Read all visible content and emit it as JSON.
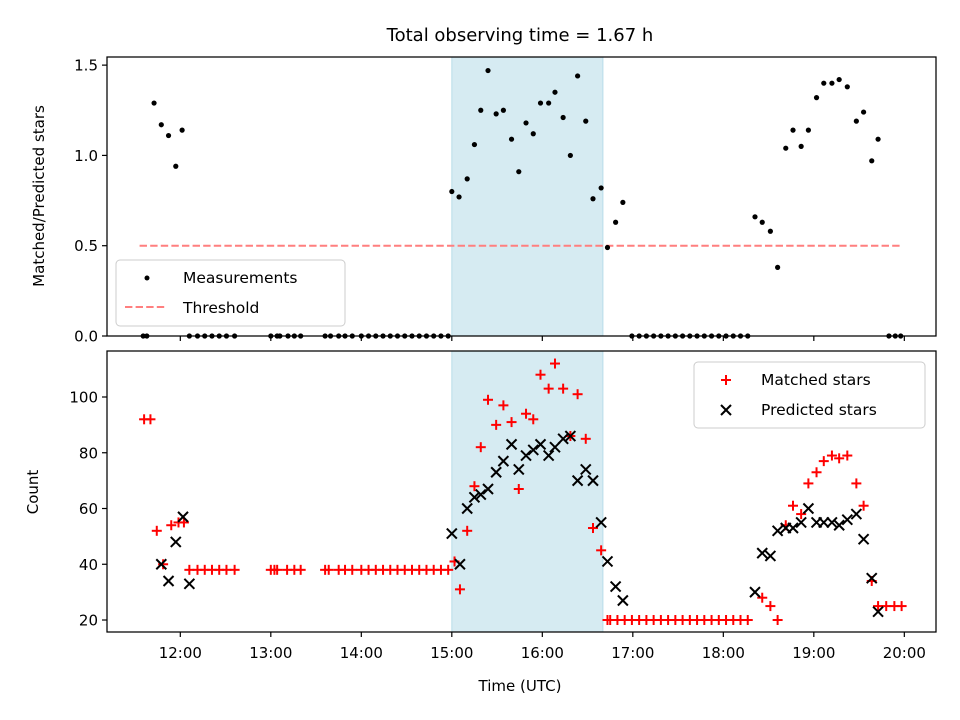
{
  "chart_data": [
    {
      "panel": "top",
      "type": "scatter",
      "title": "Total observing time = 1.67 h",
      "xlabel": "",
      "ylabel": "Matched/Predicted stars",
      "xlim": [
        11.19,
        20.35
      ],
      "ylim": [
        0.0,
        1.545
      ],
      "yticks": [
        0.0,
        0.5,
        1.0,
        1.5
      ],
      "ytick_labels": [
        "0.0",
        "0.5",
        "1.0",
        "1.5"
      ],
      "xticks": [
        12,
        13,
        14,
        15,
        16,
        17,
        18,
        19,
        20
      ],
      "grid": false,
      "legend": {
        "placement": "lower-left",
        "entries": [
          "Measurements",
          "Threshold"
        ]
      },
      "shaded_span": {
        "x_start": 15.0,
        "x_end": 16.67,
        "color": "#add8e6"
      },
      "threshold": {
        "name": "Threshold",
        "value": 0.5,
        "x_start": 11.55,
        "x_end": 19.95,
        "color": "#ff7f7f",
        "style": "dashed"
      },
      "series": [
        {
          "name": "Measurements",
          "marker": "dot",
          "color": "#000000",
          "x": [
            11.59,
            11.63,
            11.71,
            11.79,
            11.87,
            11.95,
            12.02,
            12.1,
            12.19,
            12.27,
            12.35,
            12.43,
            12.51,
            12.6,
            13.0,
            13.07,
            13.1,
            13.19,
            13.26,
            13.33,
            13.6,
            13.66,
            13.75,
            13.82,
            13.9,
            14.0,
            14.08,
            14.16,
            14.24,
            14.32,
            14.4,
            14.48,
            14.56,
            14.64,
            14.72,
            14.8,
            14.88,
            14.96,
            15.0,
            15.08,
            15.17,
            15.25,
            15.32,
            15.4,
            15.49,
            15.57,
            15.66,
            15.74,
            15.82,
            15.9,
            15.98,
            16.07,
            16.14,
            16.23,
            16.31,
            16.39,
            16.48,
            16.56,
            16.65,
            16.72,
            16.81,
            16.89,
            16.99,
            17.07,
            17.15,
            17.23,
            17.31,
            17.39,
            17.47,
            17.55,
            17.63,
            17.71,
            17.79,
            17.87,
            17.95,
            18.03,
            18.11,
            18.19,
            18.27,
            18.35,
            18.43,
            18.52,
            18.6,
            18.69,
            18.77,
            18.86,
            18.94,
            19.03,
            19.11,
            19.2,
            19.28,
            19.37,
            19.47,
            19.55,
            19.64,
            19.71,
            19.83,
            19.9,
            19.96
          ],
          "y": [
            0,
            0,
            1.29,
            1.17,
            1.11,
            0.94,
            1.14,
            0,
            0,
            0,
            0,
            0,
            0,
            0,
            0,
            0,
            0,
            0,
            0,
            0,
            0,
            0,
            0,
            0,
            0,
            0,
            0,
            0,
            0,
            0,
            0,
            0,
            0,
            0,
            0,
            0,
            0,
            0,
            0.8,
            0.77,
            0.87,
            1.06,
            1.25,
            1.47,
            1.23,
            1.25,
            1.09,
            0.91,
            1.18,
            1.12,
            1.29,
            1.29,
            1.35,
            1.21,
            1.0,
            1.44,
            1.19,
            0.76,
            0.82,
            0.49,
            0.63,
            0.74,
            0,
            0,
            0,
            0,
            0,
            0,
            0,
            0,
            0,
            0,
            0,
            0,
            0,
            0,
            0,
            0,
            0,
            0.66,
            0.63,
            0.58,
            0.38,
            1.04,
            1.14,
            1.05,
            1.14,
            1.32,
            1.4,
            1.4,
            1.42,
            1.38,
            1.19,
            1.24,
            0.97,
            1.09,
            0,
            0,
            0
          ]
        }
      ]
    },
    {
      "panel": "bottom",
      "type": "scatter",
      "title": "",
      "xlabel": "Time (UTC)",
      "ylabel": "Count",
      "xlim": [
        11.19,
        20.35
      ],
      "ylim": [
        15.7,
        116.5
      ],
      "yticks": [
        20,
        40,
        60,
        80,
        100
      ],
      "ytick_labels": [
        "20",
        "40",
        "60",
        "80",
        "100"
      ],
      "xticks": [
        12,
        13,
        14,
        15,
        16,
        17,
        18,
        19,
        20
      ],
      "xtick_labels": [
        "12:00",
        "13:00",
        "14:00",
        "15:00",
        "16:00",
        "17:00",
        "18:00",
        "19:00",
        "20:00"
      ],
      "grid": false,
      "legend": {
        "placement": "top-right",
        "entries": [
          "Matched stars",
          "Predicted stars"
        ]
      },
      "shaded_span": {
        "x_start": 15.0,
        "x_end": 16.67,
        "color": "#add8e6"
      },
      "series": [
        {
          "name": "Matched stars",
          "marker": "plus",
          "color": "#ff0000",
          "x": [
            11.6,
            11.67,
            11.74,
            11.81,
            11.9,
            11.98,
            12.04,
            12.1,
            12.19,
            12.27,
            12.35,
            12.43,
            12.51,
            12.6,
            13.0,
            13.04,
            13.07,
            13.18,
            13.26,
            13.33,
            13.6,
            13.64,
            13.75,
            13.82,
            13.9,
            14.0,
            14.08,
            14.16,
            14.24,
            14.32,
            14.4,
            14.48,
            14.56,
            14.64,
            14.72,
            14.8,
            14.88,
            14.96,
            15.03,
            15.09,
            15.17,
            15.25,
            15.32,
            15.4,
            15.49,
            15.57,
            15.66,
            15.74,
            15.82,
            15.9,
            15.98,
            16.07,
            16.14,
            16.23,
            16.31,
            16.39,
            16.48,
            16.56,
            16.65,
            16.72,
            16.75,
            16.83,
            16.91,
            16.99,
            17.07,
            17.15,
            17.23,
            17.31,
            17.39,
            17.47,
            17.55,
            17.63,
            17.71,
            17.79,
            17.87,
            17.95,
            18.03,
            18.11,
            18.19,
            18.27,
            18.43,
            18.52,
            18.6,
            18.69,
            18.77,
            18.86,
            18.94,
            19.03,
            19.11,
            19.2,
            19.28,
            19.37,
            19.47,
            19.55,
            19.64,
            19.71,
            19.8,
            19.89,
            19.97
          ],
          "y": [
            92,
            92,
            52,
            40,
            54,
            55,
            55,
            38,
            38,
            38,
            38,
            38,
            38,
            38,
            38,
            38,
            38,
            38,
            38,
            38,
            38,
            38,
            38,
            38,
            38,
            38,
            38,
            38,
            38,
            38,
            38,
            38,
            38,
            38,
            38,
            38,
            38,
            38,
            41,
            31,
            52,
            68,
            82,
            99,
            90,
            97,
            91,
            67,
            94,
            92,
            108,
            103,
            112,
            103,
            86,
            101,
            85,
            53,
            45,
            20,
            20,
            20,
            20,
            20,
            20,
            20,
            20,
            20,
            20,
            20,
            20,
            20,
            20,
            20,
            20,
            20,
            20,
            20,
            20,
            20,
            28,
            25,
            20,
            54,
            61,
            58,
            69,
            73,
            77,
            79,
            78,
            79,
            69,
            61,
            34,
            25,
            25,
            25,
            25
          ]
        },
        {
          "name": "Predicted stars",
          "marker": "x",
          "color": "#000000",
          "x": [
            11.79,
            11.87,
            11.95,
            12.03,
            12.1,
            15.0,
            15.09,
            15.17,
            15.25,
            15.32,
            15.4,
            15.49,
            15.57,
            15.66,
            15.74,
            15.82,
            15.9,
            15.98,
            16.07,
            16.14,
            16.23,
            16.31,
            16.39,
            16.48,
            16.56,
            16.65,
            16.72,
            16.81,
            16.89,
            18.35,
            18.43,
            18.52,
            18.6,
            18.69,
            18.77,
            18.86,
            18.94,
            19.03,
            19.11,
            19.2,
            19.28,
            19.37,
            19.47,
            19.55,
            19.64,
            19.71
          ],
          "y": [
            40,
            34,
            48,
            57,
            33,
            51,
            40,
            60,
            64,
            65,
            67,
            73,
            77,
            83,
            74,
            79,
            81,
            83,
            79,
            82,
            85,
            86,
            70,
            74,
            70,
            55,
            41,
            32,
            27,
            30,
            44,
            43,
            52,
            53,
            53,
            55,
            60,
            55,
            55,
            55,
            54,
            56,
            58,
            49,
            35,
            23
          ]
        }
      ]
    }
  ]
}
